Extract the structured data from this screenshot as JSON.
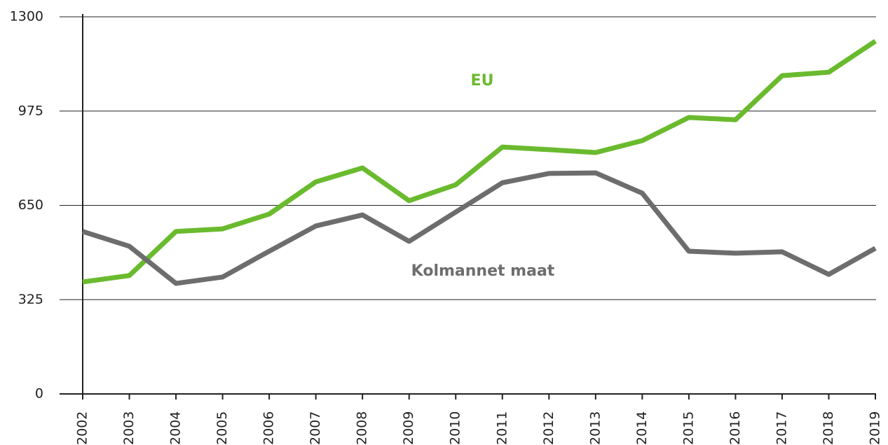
{
  "chart_data": {
    "type": "line",
    "categories": [
      "2002",
      "2003",
      "2004",
      "2005",
      "2006",
      "2007",
      "2008",
      "2009",
      "2010",
      "2011",
      "2012",
      "2013",
      "2014",
      "2015",
      "2016",
      "2017",
      "2018",
      "2019"
    ],
    "series": [
      {
        "name": "EU",
        "color": "#6aba2e",
        "values": [
          386,
          408,
          560,
          569,
          620,
          731,
          779,
          666,
          721,
          851,
          842,
          832,
          873,
          953,
          945,
          1097,
          1109,
          1216
        ]
      },
      {
        "name": "Kolmannet maat",
        "color": "#6d6d6d",
        "values": [
          560,
          509,
          381,
          403,
          492,
          579,
          617,
          526,
          627,
          728,
          760,
          762,
          692,
          492,
          485,
          490,
          412,
          502
        ]
      }
    ],
    "ylim": [
      0,
      1300
    ],
    "yticks": [
      0,
      325,
      650,
      975,
      1300
    ],
    "grid": true
  }
}
